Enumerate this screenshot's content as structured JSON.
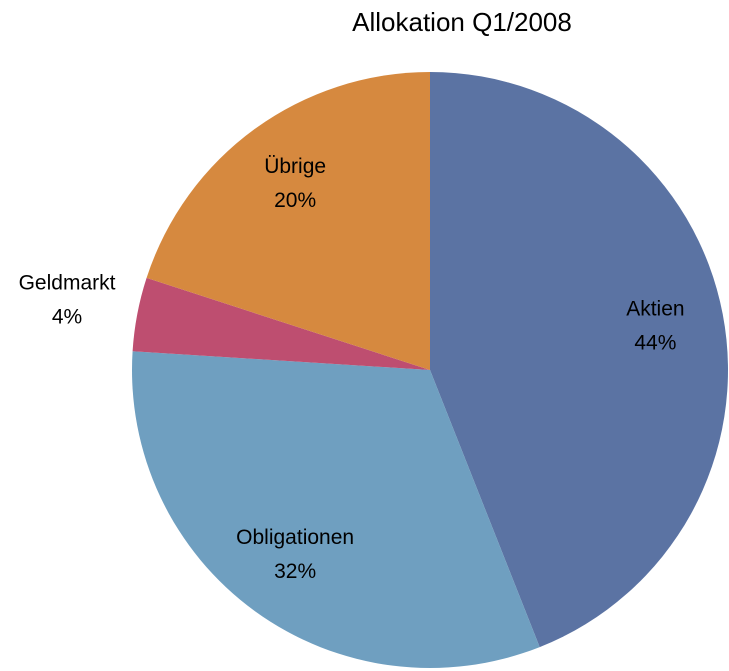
{
  "chart_data": {
    "type": "pie",
    "title": "Allokation Q1/2008",
    "categories": [
      "Aktien",
      "Obligationen",
      "Geldmarkt",
      "Übrige"
    ],
    "values": [
      44,
      32,
      4,
      20
    ],
    "value_labels": [
      "44%",
      "32%",
      "4%",
      "20%"
    ],
    "colors": [
      "#5b73a3",
      "#6f9fc0",
      "#be4e70",
      "#d6893f"
    ]
  }
}
